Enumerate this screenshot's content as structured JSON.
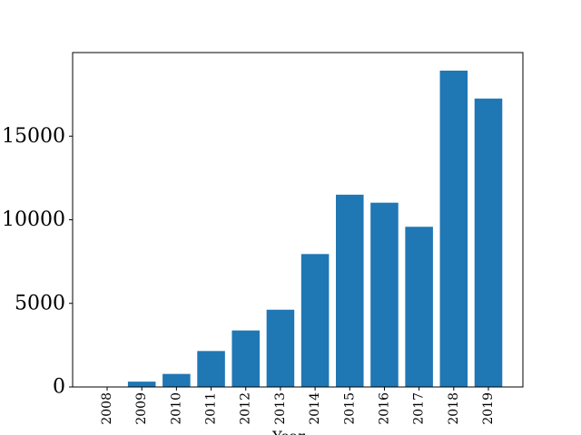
{
  "chart_data": {
    "type": "bar",
    "title": "",
    "xlabel": "Year",
    "ylabel": "",
    "categories": [
      "2008",
      "2009",
      "2010",
      "2011",
      "2012",
      "2013",
      "2014",
      "2015",
      "2016",
      "2017",
      "2018",
      "2019"
    ],
    "values": [
      20,
      320,
      780,
      2150,
      3380,
      4620,
      7950,
      11500,
      11020,
      9580,
      18920,
      17250
    ],
    "ylim": [
      0,
      20000
    ],
    "yticks": [
      0,
      5000,
      10000,
      15000
    ],
    "grid": false,
    "legend": null,
    "bar_color": "#1f77b4"
  }
}
